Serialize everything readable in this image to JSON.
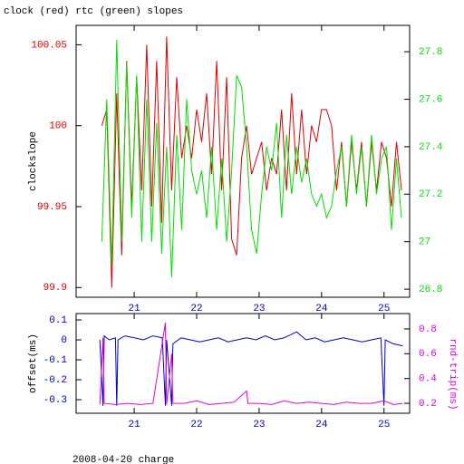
{
  "chart_data": [
    {
      "type": "line",
      "title": "clock (red) rtc (green) slopes",
      "ylabel": "clockslope",
      "xlim": [
        20.07,
        25.41
      ],
      "xticks": [
        21,
        22,
        23,
        24,
        25
      ],
      "xtick_color": "#0000cc",
      "ylim": [
        99.894,
        100.062
      ],
      "yticks": [
        99.9,
        99.95,
        100,
        100.05
      ],
      "y2lim": [
        26.766,
        27.911
      ],
      "y2ticks": [
        26.8,
        27,
        27.2,
        27.4,
        27.6,
        27.8
      ],
      "series": [
        {
          "color": "#e00000",
          "axis": "y",
          "x": [
            20.48,
            20.56,
            20.64,
            20.72,
            20.8,
            20.88,
            20.96,
            21.04,
            21.12,
            21.2,
            21.28,
            21.36,
            21.44,
            21.52,
            21.6,
            21.68,
            21.76,
            21.84,
            21.92,
            22.0,
            22.08,
            22.16,
            22.24,
            22.32,
            22.4,
            22.48,
            22.56,
            22.64,
            22.72,
            22.8,
            22.88,
            22.96,
            23.04,
            23.12,
            23.2,
            23.28,
            23.36,
            23.44,
            23.52,
            23.6,
            23.68,
            23.76,
            23.84,
            23.92,
            24.0,
            24.08,
            24.16,
            24.24,
            24.32,
            24.4,
            24.48,
            24.56,
            24.64,
            24.72,
            24.8,
            24.88,
            24.96,
            25.04,
            25.12,
            25.2,
            25.28
          ],
          "values": [
            100.0,
            100.01,
            99.9,
            100.02,
            99.92,
            100.04,
            99.95,
            100.03,
            99.96,
            100.05,
            99.95,
            100.04,
            99.94,
            100.055,
            99.96,
            100.03,
            99.98,
            100.0,
            99.98,
            100.01,
            99.99,
            100.02,
            99.97,
            100.04,
            99.96,
            100.03,
            99.93,
            99.92,
            99.98,
            100.0,
            99.97,
            99.98,
            99.99,
            99.96,
            99.98,
            99.97,
            100.01,
            99.96,
            100.02,
            99.97,
            100.01,
            99.97,
            100.0,
            99.99,
            100.01,
            100.01,
            100.0,
            99.96,
            99.99,
            99.95,
            99.99,
            99.96,
            99.99,
            99.95,
            99.99,
            99.96,
            99.99,
            99.98,
            99.95,
            99.99,
            99.96
          ]
        },
        {
          "color": "#00e000",
          "axis": "y2",
          "x": [
            20.48,
            20.56,
            20.64,
            20.72,
            20.8,
            20.88,
            20.96,
            21.04,
            21.12,
            21.2,
            21.28,
            21.36,
            21.44,
            21.52,
            21.6,
            21.68,
            21.76,
            21.84,
            21.92,
            22.0,
            22.08,
            22.16,
            22.24,
            22.32,
            22.4,
            22.48,
            22.56,
            22.64,
            22.72,
            22.8,
            22.88,
            22.96,
            23.04,
            23.12,
            23.2,
            23.28,
            23.36,
            23.44,
            23.52,
            23.6,
            23.68,
            23.76,
            23.84,
            23.92,
            24.0,
            24.08,
            24.16,
            24.24,
            24.32,
            24.4,
            24.48,
            24.56,
            24.64,
            24.72,
            24.8,
            24.88,
            24.96,
            25.04,
            25.12,
            25.2,
            25.28
          ],
          "values": [
            27.0,
            27.6,
            26.9,
            27.85,
            27.0,
            27.75,
            27.1,
            27.7,
            27.0,
            27.6,
            27.0,
            27.5,
            26.95,
            27.4,
            26.85,
            27.45,
            27.05,
            27.6,
            27.3,
            27.2,
            27.3,
            27.1,
            27.4,
            27.05,
            27.35,
            27.0,
            27.3,
            27.7,
            27.65,
            27.4,
            27.05,
            26.95,
            27.2,
            27.4,
            27.3,
            27.5,
            27.1,
            27.45,
            27.2,
            27.4,
            27.25,
            27.35,
            27.2,
            27.15,
            27.2,
            27.1,
            27.15,
            27.3,
            27.4,
            27.15,
            27.45,
            27.2,
            27.4,
            27.15,
            27.45,
            27.2,
            27.35,
            27.4,
            27.05,
            27.35,
            27.1
          ]
        }
      ]
    },
    {
      "type": "line",
      "ylabel": "offset(ms)",
      "y2label": "rnd-trip(ms)",
      "xlim": [
        20.07,
        25.41
      ],
      "xticks": [
        21,
        22,
        23,
        24,
        25
      ],
      "xtick_color": "#0000cc",
      "ylim": [
        -0.368,
        0.132
      ],
      "yticks": [
        0.1,
        0,
        -0.1,
        -0.2,
        -0.3
      ],
      "y2lim": [
        0.12,
        0.924
      ],
      "y2ticks": [
        0.2,
        0.4,
        0.6,
        0.8
      ],
      "series": [
        {
          "color": "#0000cc",
          "axis": "y",
          "x": [
            20.45,
            20.5,
            20.52,
            20.6,
            20.7,
            20.72,
            20.74,
            20.85,
            21.0,
            21.15,
            21.3,
            21.45,
            21.5,
            21.52,
            21.6,
            21.62,
            21.75,
            21.9,
            22.05,
            22.2,
            22.35,
            22.5,
            22.65,
            22.8,
            22.95,
            23.1,
            23.25,
            23.4,
            23.6,
            23.75,
            23.9,
            24.05,
            24.2,
            24.35,
            24.5,
            24.65,
            24.8,
            24.95,
            25.0,
            25.02,
            25.15,
            25.3
          ],
          "values": [
            0.0,
            -0.33,
            0.02,
            0.0,
            0.01,
            -0.33,
            0.0,
            0.02,
            0.01,
            0.0,
            0.02,
            0.01,
            -0.33,
            0.0,
            -0.33,
            -0.02,
            0.01,
            0.0,
            -0.01,
            0.0,
            0.01,
            -0.01,
            0.0,
            0.01,
            0.0,
            0.02,
            0.0,
            0.01,
            0.04,
            0.0,
            0.01,
            -0.01,
            0.0,
            0.01,
            0.0,
            -0.01,
            0.0,
            0.01,
            -0.33,
            0.0,
            -0.02,
            -0.03
          ]
        },
        {
          "color": "#e000e0",
          "axis": "y2",
          "x": [
            20.45,
            20.5,
            20.52,
            20.7,
            20.9,
            21.1,
            21.3,
            21.5,
            21.52,
            21.6,
            21.62,
            21.8,
            22.0,
            22.2,
            22.4,
            22.6,
            22.8,
            22.82,
            23.0,
            23.2,
            23.4,
            23.6,
            23.8,
            24.0,
            24.2,
            24.4,
            24.6,
            24.8,
            25.0,
            25.15,
            25.3
          ],
          "values": [
            0.19,
            0.73,
            0.2,
            0.19,
            0.2,
            0.19,
            0.2,
            0.85,
            0.19,
            0.6,
            0.2,
            0.2,
            0.22,
            0.19,
            0.2,
            0.21,
            0.3,
            0.2,
            0.2,
            0.19,
            0.22,
            0.2,
            0.21,
            0.2,
            0.19,
            0.21,
            0.2,
            0.2,
            0.22,
            0.19,
            0.2
          ]
        }
      ]
    }
  ],
  "footer": "2008-04-20 charge"
}
